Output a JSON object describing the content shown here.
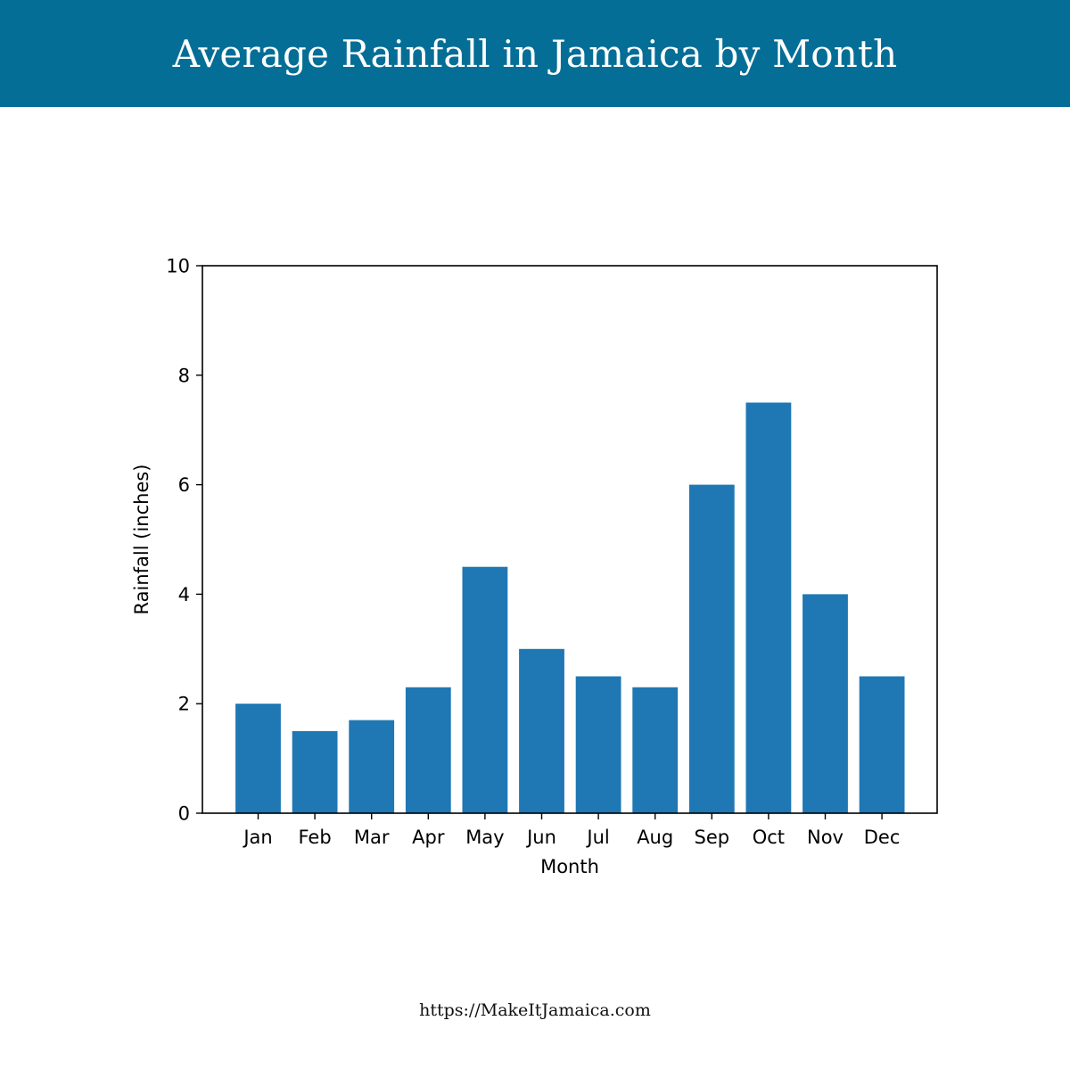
{
  "banner": {
    "title": "Average Rainfall in Jamaica by Month",
    "background_color": "#046e96"
  },
  "footer": {
    "url_text": "https://MakeItJamaica.com"
  },
  "chart_data": {
    "type": "bar",
    "categories": [
      "Jan",
      "Feb",
      "Mar",
      "Apr",
      "May",
      "Jun",
      "Jul",
      "Aug",
      "Sep",
      "Oct",
      "Nov",
      "Dec"
    ],
    "values": [
      2.0,
      1.5,
      1.7,
      2.3,
      4.5,
      3.0,
      2.5,
      2.3,
      6.0,
      7.5,
      4.0,
      2.5
    ],
    "xlabel": "Month",
    "ylabel": "Rainfall (inches)",
    "ylim": [
      0,
      10
    ],
    "yticks": [
      0,
      2,
      4,
      6,
      8,
      10
    ],
    "bar_color": "#1f77b4",
    "grid": false,
    "legend": "none"
  }
}
